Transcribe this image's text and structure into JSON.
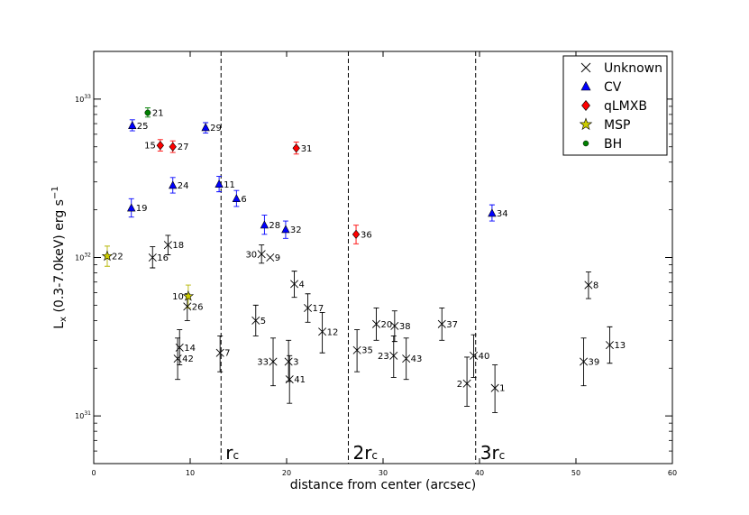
{
  "chart_data": {
    "type": "scatter",
    "xlabel": "distance from center (arcsec)",
    "ylabel_main": "L",
    "ylabel_sub": "x",
    "ylabel_rest": " (0.3-7.0keV) erg s",
    "ylabel_sup": "−1",
    "xlim": [
      0,
      60
    ],
    "ylim": [
      5e+30,
      2e+33
    ],
    "y_scale": "log",
    "x_ticks": [
      {
        "value": 0,
        "label": "0"
      },
      {
        "value": 10,
        "label": "10"
      },
      {
        "value": 20,
        "label": "20"
      },
      {
        "value": 30,
        "label": "30"
      },
      {
        "value": 40,
        "label": "40"
      },
      {
        "value": 50,
        "label": "50"
      },
      {
        "value": 60,
        "label": "60"
      }
    ],
    "y_ticks": [
      {
        "value": 1e+31,
        "base": "10",
        "exp": "31"
      },
      {
        "value": 1e+32,
        "base": "10",
        "exp": "32"
      },
      {
        "value": 1e+33,
        "base": "10",
        "exp": "33"
      }
    ],
    "grid": false,
    "legend_position": "top-right",
    "vlines": [
      {
        "x": 13.2,
        "label_main": "r",
        "label_sub": "c"
      },
      {
        "x": 26.4,
        "label_main": "2r",
        "label_sub": "c"
      },
      {
        "x": 39.6,
        "label_main": "3r",
        "label_sub": "c"
      }
    ],
    "series": [
      {
        "name": "Unknown",
        "marker": "x",
        "color": "#000000",
        "errcolor": "#000000",
        "points": [
          {
            "label": "1",
            "x": 41.6,
            "y": 1.5e+31,
            "lo": 1.05e+31,
            "hi": 2.1e+31,
            "lab": "right"
          },
          {
            "label": "2",
            "x": 38.7,
            "y": 1.6e+31,
            "lo": 1.15e+31,
            "hi": 2.35e+31,
            "lab": "left"
          },
          {
            "label": "3",
            "x": 20.2,
            "y": 2.2e+31,
            "lo": 1.65e+31,
            "hi": 3e+31,
            "lab": "right"
          },
          {
            "label": "4",
            "x": 20.8,
            "y": 6.8e+31,
            "lo": 5.6e+31,
            "hi": 8.2e+31,
            "lab": "right"
          },
          {
            "label": "5",
            "x": 16.8,
            "y": 4e+31,
            "lo": 3.2e+31,
            "hi": 5e+31,
            "lab": "right"
          },
          {
            "label": "7",
            "x": 13.1,
            "y": 2.5e+31,
            "lo": 1.9e+31,
            "hi": 3.2e+31,
            "lab": "right"
          },
          {
            "label": "8",
            "x": 51.3,
            "y": 6.7e+31,
            "lo": 5.5e+31,
            "hi": 8.1e+31,
            "lab": "right"
          },
          {
            "label": "9",
            "x": 18.3,
            "y": 1e+32,
            "lo": null,
            "hi": null,
            "lab": "right"
          },
          {
            "label": "12",
            "x": 23.7,
            "y": 3.4e+31,
            "lo": 2.5e+31,
            "hi": 4.5e+31,
            "lab": "right"
          },
          {
            "label": "13",
            "x": 53.5,
            "y": 2.8e+31,
            "lo": 2.15e+31,
            "hi": 3.65e+31,
            "lab": "right"
          },
          {
            "label": "14",
            "x": 8.9,
            "y": 2.7e+31,
            "lo": 2.1e+31,
            "hi": 3.5e+31,
            "lab": "right"
          },
          {
            "label": "16",
            "x": 6.1,
            "y": 1e+32,
            "lo": 8.6e+31,
            "hi": 1.17e+32,
            "lab": "right"
          },
          {
            "label": "17",
            "x": 22.2,
            "y": 4.8e+31,
            "lo": 3.9e+31,
            "hi": 5.9e+31,
            "lab": "right"
          },
          {
            "label": "18",
            "x": 7.7,
            "y": 1.2e+32,
            "lo": 1.04e+32,
            "hi": 1.38e+32,
            "lab": "right"
          },
          {
            "label": "20",
            "x": 29.3,
            "y": 3.8e+31,
            "lo": 3e+31,
            "hi": 4.8e+31,
            "lab": "right"
          },
          {
            "label": "23",
            "x": 31.1,
            "y": 2.4e+31,
            "lo": 1.75e+31,
            "hi": 3.2e+31,
            "lab": "left"
          },
          {
            "label": "26",
            "x": 9.7,
            "y": 4.9e+31,
            "lo": 4e+31,
            "hi": 5.9e+31,
            "lab": "right"
          },
          {
            "label": "30",
            "x": 17.4,
            "y": 1.05e+32,
            "lo": 9.2e+31,
            "hi": 1.2e+32,
            "lab": "left"
          },
          {
            "label": "33",
            "x": 18.6,
            "y": 2.2e+31,
            "lo": 1.55e+31,
            "hi": 3.1e+31,
            "lab": "left"
          },
          {
            "label": "35",
            "x": 27.3,
            "y": 2.6e+31,
            "lo": 1.9e+31,
            "hi": 3.5e+31,
            "lab": "right"
          },
          {
            "label": "37",
            "x": 36.1,
            "y": 3.8e+31,
            "lo": 3e+31,
            "hi": 4.8e+31,
            "lab": "right"
          },
          {
            "label": "38",
            "x": 31.2,
            "y": 3.7e+31,
            "lo": 2.95e+31,
            "hi": 4.6e+31,
            "lab": "right"
          },
          {
            "label": "39",
            "x": 50.8,
            "y": 2.2e+31,
            "lo": 1.55e+31,
            "hi": 3.1e+31,
            "lab": "right"
          },
          {
            "label": "40",
            "x": 39.4,
            "y": 2.4e+31,
            "lo": 1.75e+31,
            "hi": 3.25e+31,
            "lab": "right"
          },
          {
            "label": "41",
            "x": 20.3,
            "y": 1.7e+31,
            "lo": 1.2e+31,
            "hi": 2.4e+31,
            "lab": "right"
          },
          {
            "label": "42",
            "x": 8.7,
            "y": 2.3e+31,
            "lo": 1.7e+31,
            "hi": 3.1e+31,
            "lab": "right"
          },
          {
            "label": "43",
            "x": 32.4,
            "y": 2.3e+31,
            "lo": 1.7e+31,
            "hi": 3.1e+31,
            "lab": "right"
          }
        ]
      },
      {
        "name": "CV",
        "marker": "triangle",
        "color": "#0000ff",
        "errcolor": "#0000ff",
        "points": [
          {
            "label": "6",
            "x": 14.8,
            "y": 2.35e+32,
            "lo": 2.1e+32,
            "hi": 2.65e+32,
            "lab": "right"
          },
          {
            "label": "11",
            "x": 13.0,
            "y": 2.9e+32,
            "lo": 2.6e+32,
            "hi": 3.25e+32,
            "lab": "right"
          },
          {
            "label": "19",
            "x": 3.9,
            "y": 2.05e+32,
            "lo": 1.8e+32,
            "hi": 2.35e+32,
            "lab": "right"
          },
          {
            "label": "24",
            "x": 8.2,
            "y": 2.85e+32,
            "lo": 2.55e+32,
            "hi": 3.2e+32,
            "lab": "right"
          },
          {
            "label": "25",
            "x": 4.0,
            "y": 6.8e+32,
            "lo": 6.3e+32,
            "hi": 7.4e+32,
            "lab": "right"
          },
          {
            "label": "28",
            "x": 17.7,
            "y": 1.6e+32,
            "lo": 1.4e+32,
            "hi": 1.85e+32,
            "lab": "right"
          },
          {
            "label": "29",
            "x": 11.6,
            "y": 6.6e+32,
            "lo": 6.1e+32,
            "hi": 7.1e+32,
            "lab": "right"
          },
          {
            "label": "32",
            "x": 19.9,
            "y": 1.5e+32,
            "lo": 1.32e+32,
            "hi": 1.7e+32,
            "lab": "right"
          },
          {
            "label": "34",
            "x": 41.3,
            "y": 1.9e+32,
            "lo": 1.7e+32,
            "hi": 2.15e+32,
            "lab": "right"
          }
        ]
      },
      {
        "name": "qLMXB",
        "marker": "diamond",
        "color": "#ff0000",
        "errcolor": "#ff0000",
        "points": [
          {
            "label": "15",
            "x": 6.9,
            "y": 5.1e+32,
            "lo": 4.7e+32,
            "hi": 5.55e+32,
            "lab": "left"
          },
          {
            "label": "27",
            "x": 8.2,
            "y": 5e+32,
            "lo": 4.6e+32,
            "hi": 5.45e+32,
            "lab": "right"
          },
          {
            "label": "31",
            "x": 21.0,
            "y": 4.9e+32,
            "lo": 4.5e+32,
            "hi": 5.35e+32,
            "lab": "right"
          },
          {
            "label": "36",
            "x": 27.2,
            "y": 1.4e+32,
            "lo": 1.22e+32,
            "hi": 1.6e+32,
            "lab": "right"
          }
        ]
      },
      {
        "name": "MSP",
        "marker": "star",
        "color": "#cccc00",
        "errcolor": "#b5b500",
        "points": [
          {
            "label": "22",
            "x": 1.4,
            "y": 1.02e+32,
            "lo": 8.8e+31,
            "hi": 1.18e+32,
            "lab": "right"
          },
          {
            "label": "10",
            "x": 9.8,
            "y": 5.7e+31,
            "lo": 4.8e+31,
            "hi": 6.7e+31,
            "lab": "left"
          }
        ]
      },
      {
        "name": "BH",
        "marker": "circle",
        "color": "#008000",
        "errcolor": "#008000",
        "points": [
          {
            "label": "21",
            "x": 5.6,
            "y": 8.2e+32,
            "lo": 7.7e+32,
            "hi": 8.8e+32,
            "lab": "right"
          }
        ]
      }
    ]
  }
}
